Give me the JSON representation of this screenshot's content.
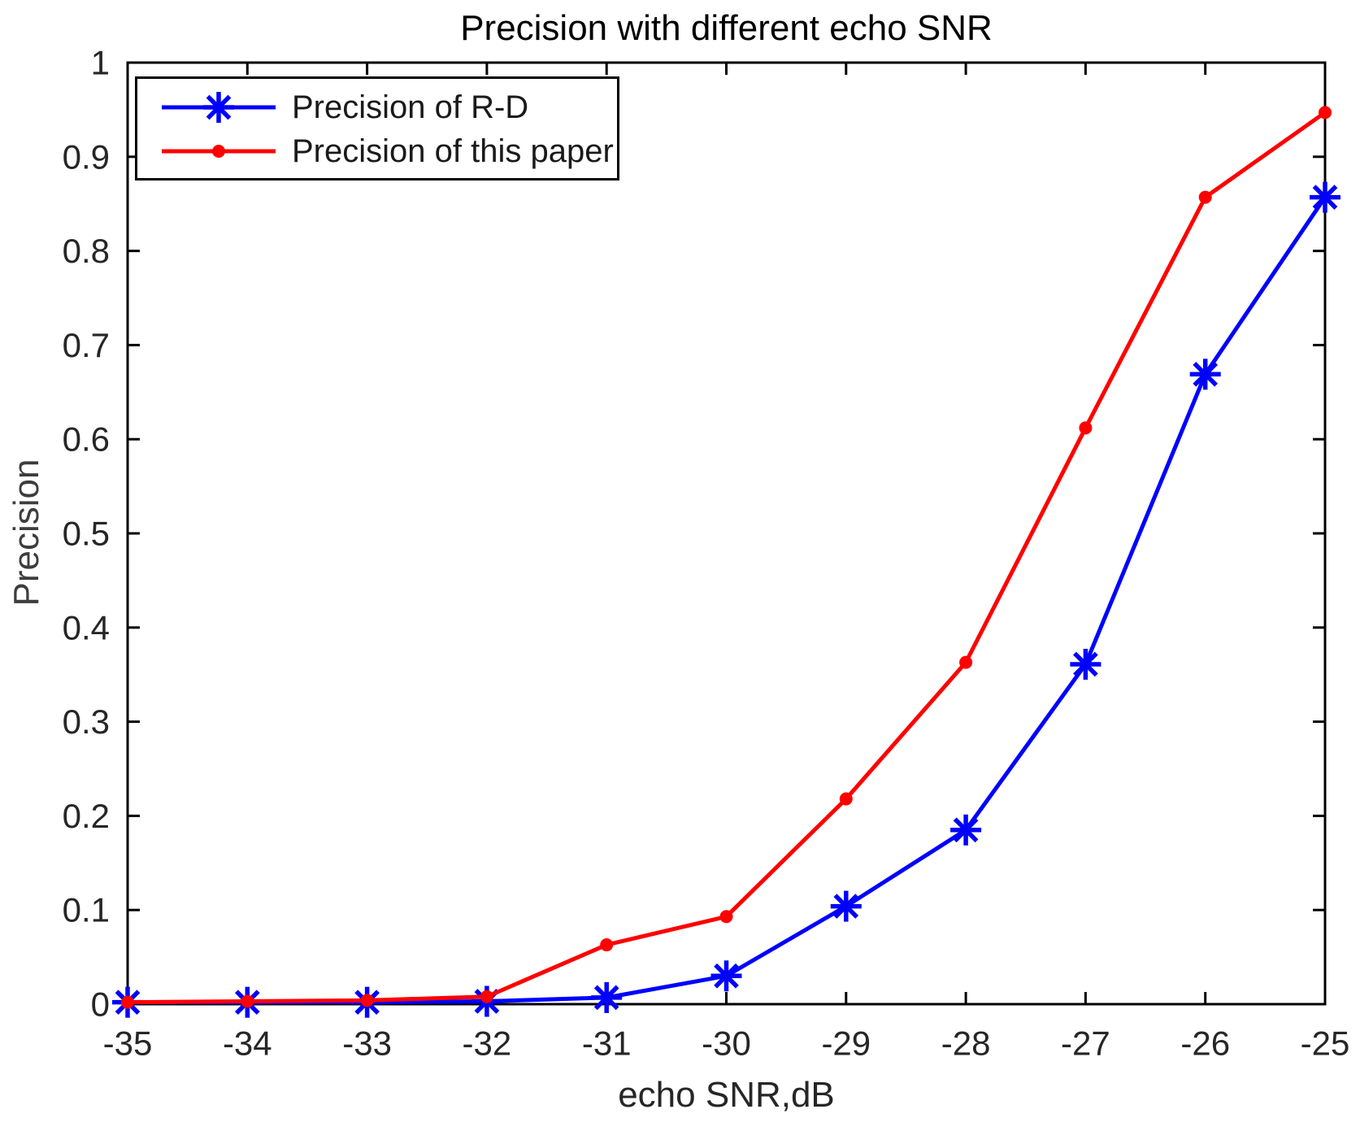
{
  "figure": {
    "background": "#ffffff"
  },
  "chart_data": {
    "type": "line",
    "title": "Precision with different echo SNR",
    "xlabel": "echo SNR,dB",
    "ylabel": "Precision",
    "grid": false,
    "legend_position": "top-left",
    "axis_color": "#000000",
    "text_color": "#262626",
    "xlim": [
      -35,
      -25
    ],
    "ylim": [
      0,
      1
    ],
    "xticks": [
      -35,
      -34,
      -33,
      -32,
      -31,
      -30,
      -29,
      -28,
      -27,
      -26,
      -25
    ],
    "yticks": [
      0,
      0.1,
      0.2,
      0.3,
      0.4,
      0.5,
      0.6,
      0.7,
      0.8,
      0.9,
      1
    ],
    "x": [
      -35,
      -34,
      -33,
      -32,
      -31,
      -30,
      -29,
      -28,
      -27,
      -26,
      -25
    ],
    "series": [
      {
        "name": "Precision of R-D",
        "color": "#0000ff",
        "marker": "asterisk",
        "values": [
          0.002,
          0.002,
          0.002,
          0.003,
          0.007,
          0.03,
          0.104,
          0.185,
          0.361,
          0.669,
          0.857
        ]
      },
      {
        "name": "Precision of this paper",
        "color": "#ff0000",
        "marker": "dot",
        "values": [
          0.002,
          0.003,
          0.004,
          0.008,
          0.063,
          0.093,
          0.218,
          0.363,
          0.612,
          0.857,
          0.947
        ]
      }
    ]
  }
}
